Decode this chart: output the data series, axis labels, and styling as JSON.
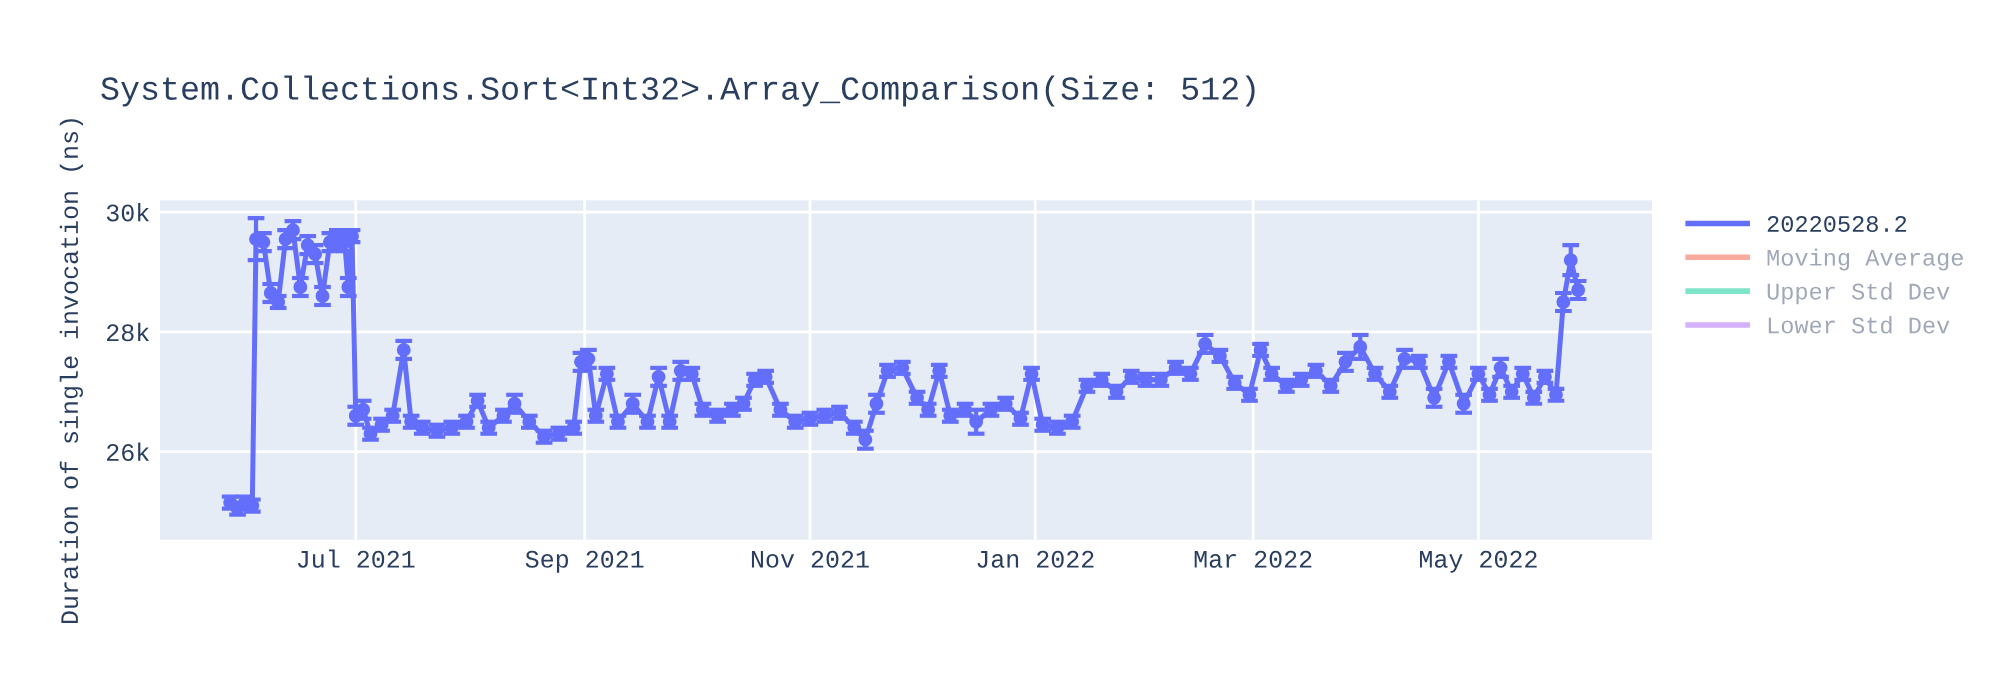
{
  "chart_data": {
    "type": "line",
    "title": "System.Collections.Sort<Int32>.Array_Comparison(Size: 512)",
    "ylabel": "Duration of single invocation (ns)",
    "x": [
      "2021-05-28",
      "2021-05-30",
      "2021-06-01",
      "2021-06-03",
      "2021-06-04",
      "2021-06-06",
      "2021-06-08",
      "2021-06-10",
      "2021-06-12",
      "2021-06-14",
      "2021-06-16",
      "2021-06-18",
      "2021-06-20",
      "2021-06-22",
      "2021-06-24",
      "2021-06-26",
      "2021-06-28",
      "2021-06-29",
      "2021-06-30",
      "2021-07-01",
      "2021-07-03",
      "2021-07-05",
      "2021-07-08",
      "2021-07-11",
      "2021-07-14",
      "2021-07-16",
      "2021-07-19",
      "2021-07-23",
      "2021-07-27",
      "2021-07-31",
      "2021-08-03",
      "2021-08-06",
      "2021-08-10",
      "2021-08-13",
      "2021-08-17",
      "2021-08-21",
      "2021-08-25",
      "2021-08-29",
      "2021-08-31",
      "2021-09-02",
      "2021-09-04",
      "2021-09-07",
      "2021-09-10",
      "2021-09-14",
      "2021-09-18",
      "2021-09-21",
      "2021-09-24",
      "2021-09-27",
      "2021-09-30",
      "2021-10-03",
      "2021-10-07",
      "2021-10-11",
      "2021-10-14",
      "2021-10-17",
      "2021-10-20",
      "2021-10-24",
      "2021-10-28",
      "2021-11-01",
      "2021-11-05",
      "2021-11-09",
      "2021-11-13",
      "2021-11-16",
      "2021-11-19",
      "2021-11-22",
      "2021-11-26",
      "2021-11-30",
      "2021-12-03",
      "2021-12-06",
      "2021-12-09",
      "2021-12-13",
      "2021-12-16",
      "2021-12-20",
      "2021-12-24",
      "2021-12-28",
      "2021-12-31",
      "2022-01-03",
      "2022-01-07",
      "2022-01-11",
      "2022-01-15",
      "2022-01-19",
      "2022-01-23",
      "2022-01-27",
      "2022-01-31",
      "2022-02-04",
      "2022-02-08",
      "2022-02-12",
      "2022-02-16",
      "2022-02-20",
      "2022-02-24",
      "2022-02-28",
      "2022-03-03",
      "2022-03-06",
      "2022-03-10",
      "2022-03-14",
      "2022-03-18",
      "2022-03-22",
      "2022-03-26",
      "2022-03-30",
      "2022-04-03",
      "2022-04-07",
      "2022-04-11",
      "2022-04-15",
      "2022-04-19",
      "2022-04-23",
      "2022-04-27",
      "2022-05-01",
      "2022-05-04",
      "2022-05-07",
      "2022-05-10",
      "2022-05-13",
      "2022-05-16",
      "2022-05-19",
      "2022-05-22",
      "2022-05-24",
      "2022-05-26",
      "2022-05-28"
    ],
    "series": [
      {
        "name": "20220528.2",
        "color": "#636efa",
        "values": [
          25150,
          25050,
          25150,
          25100,
          29550,
          29500,
          28650,
          28500,
          29550,
          29700,
          28750,
          29450,
          29300,
          28600,
          29500,
          29550,
          29500,
          28750,
          29600,
          26600,
          26700,
          26300,
          26450,
          26600,
          27700,
          26500,
          26400,
          26350,
          26400,
          26500,
          26850,
          26400,
          26600,
          26800,
          26500,
          26250,
          26300,
          26400,
          27500,
          27550,
          26600,
          27300,
          26500,
          26800,
          26500,
          27250,
          26500,
          27350,
          27300,
          26700,
          26600,
          26700,
          26800,
          27200,
          27250,
          26700,
          26500,
          26550,
          26600,
          26650,
          26400,
          26200,
          26800,
          27350,
          27400,
          26900,
          26700,
          27350,
          26600,
          26700,
          26500,
          26700,
          26800,
          26550,
          27300,
          26450,
          26400,
          26500,
          27100,
          27200,
          27000,
          27250,
          27200,
          27200,
          27400,
          27300,
          27800,
          27600,
          27150,
          26950,
          27700,
          27300,
          27100,
          27200,
          27350,
          27100,
          27500,
          27750,
          27300,
          27000,
          27550,
          27500,
          26900,
          27500,
          26800,
          27300,
          26950,
          27400,
          27000,
          27300,
          26900,
          27250,
          26950,
          28500,
          29200,
          28700
        ],
        "errors": [
          100,
          100,
          100,
          100,
          350,
          150,
          150,
          100,
          150,
          150,
          150,
          150,
          150,
          150,
          150,
          150,
          150,
          150,
          100,
          150,
          150,
          100,
          100,
          100,
          150,
          100,
          100,
          100,
          100,
          100,
          100,
          100,
          100,
          150,
          100,
          100,
          100,
          100,
          150,
          150,
          100,
          100,
          100,
          150,
          100,
          150,
          100,
          150,
          100,
          100,
          100,
          100,
          100,
          100,
          100,
          100,
          100,
          100,
          100,
          100,
          100,
          150,
          150,
          100,
          100,
          100,
          100,
          100,
          100,
          100,
          200,
          100,
          100,
          100,
          100,
          100,
          100,
          100,
          100,
          100,
          100,
          100,
          100,
          100,
          100,
          100,
          150,
          100,
          100,
          100,
          100,
          100,
          100,
          100,
          100,
          100,
          150,
          200,
          100,
          100,
          150,
          100,
          150,
          100,
          150,
          100,
          100,
          150,
          100,
          100,
          100,
          100,
          100,
          150,
          250,
          150
        ]
      },
      {
        "name": "Moving Average",
        "color": "#ef553b",
        "values": [
          null,
          null,
          null,
          null,
          null,
          null,
          null,
          null,
          null,
          null,
          null,
          null,
          null,
          null,
          null,
          null,
          null,
          null,
          null,
          null,
          null,
          null,
          null,
          null,
          null,
          null,
          null,
          null,
          null,
          null,
          null,
          null,
          null,
          null,
          null,
          null,
          null,
          null,
          null,
          null,
          null,
          null,
          null,
          null,
          null,
          null,
          null,
          null,
          null,
          null,
          null,
          null,
          null,
          null,
          null,
          null,
          null,
          null,
          null,
          null,
          null,
          null,
          null,
          null,
          null,
          null,
          null,
          null,
          null,
          null,
          null,
          null,
          null,
          null,
          null,
          null,
          null,
          null,
          null,
          null,
          null,
          null,
          null,
          null,
          null,
          null,
          null,
          null,
          null,
          null,
          null,
          null,
          null,
          null,
          null,
          null,
          null,
          null,
          null,
          null,
          null,
          null,
          null,
          null,
          null,
          null,
          null,
          null,
          null,
          null,
          null,
          null,
          null,
          null,
          null,
          null
        ]
      },
      {
        "name": "Upper Std Dev",
        "color": "#00cc96",
        "values": [
          null,
          null,
          null,
          null,
          null,
          null,
          null,
          null,
          null,
          null,
          null,
          null,
          null,
          null,
          null,
          null,
          null,
          null,
          null,
          null,
          null,
          null,
          null,
          null,
          null,
          null,
          null,
          null,
          null,
          null,
          null,
          null,
          null,
          null,
          null,
          null,
          null,
          null,
          null,
          null,
          null,
          null,
          null,
          null,
          null,
          null,
          null,
          null,
          null,
          null,
          null,
          null,
          null,
          null,
          null,
          null,
          null,
          null,
          null,
          null,
          null,
          null,
          null,
          null,
          null,
          null,
          null,
          null,
          null,
          null,
          null,
          null,
          null,
          null,
          null,
          null,
          null,
          null,
          null,
          null,
          null,
          null,
          null,
          null,
          null,
          null,
          null,
          null,
          null,
          null,
          null,
          null,
          null,
          null,
          null,
          null,
          null,
          null,
          null,
          null,
          null,
          null,
          null,
          null,
          null,
          null,
          null,
          null,
          null,
          null,
          null,
          null,
          null,
          null,
          null,
          null
        ]
      },
      {
        "name": "Lower Std Dev",
        "color": "#ab63fa",
        "values": [
          null,
          null,
          null,
          null,
          null,
          null,
          null,
          null,
          null,
          null,
          null,
          null,
          null,
          null,
          null,
          null,
          null,
          null,
          null,
          null,
          null,
          null,
          null,
          null,
          null,
          null,
          null,
          null,
          null,
          null,
          null,
          null,
          null,
          null,
          null,
          null,
          null,
          null,
          null,
          null,
          null,
          null,
          null,
          null,
          null,
          null,
          null,
          null,
          null,
          null,
          null,
          null,
          null,
          null,
          null,
          null,
          null,
          null,
          null,
          null,
          null,
          null,
          null,
          null,
          null,
          null,
          null,
          null,
          null,
          null,
          null,
          null,
          null,
          null,
          null,
          null,
          null,
          null,
          null,
          null,
          null,
          null,
          null,
          null,
          null,
          null,
          null,
          null,
          null,
          null,
          null,
          null,
          null,
          null,
          null,
          null,
          null,
          null,
          null,
          null,
          null,
          null,
          null,
          null,
          null,
          null,
          null,
          null,
          null,
          null,
          null,
          null,
          null,
          null,
          null,
          null
        ]
      }
    ],
    "xlim": [
      "2021-05-09",
      "2022-06-17"
    ],
    "xticks": [
      {
        "value": "2021-07-01",
        "label": "Jul 2021"
      },
      {
        "value": "2021-09-01",
        "label": "Sep 2021"
      },
      {
        "value": "2021-11-01",
        "label": "Nov 2021"
      },
      {
        "value": "2022-01-01",
        "label": "Jan 2022"
      },
      {
        "value": "2022-03-01",
        "label": "Mar 2022"
      },
      {
        "value": "2022-05-01",
        "label": "May 2022"
      }
    ],
    "ylim": [
      24530,
      30200
    ],
    "yticks": [
      {
        "value": 26000,
        "label": "26k"
      },
      {
        "value": 28000,
        "label": "28k"
      },
      {
        "value": 30000,
        "label": "30k"
      }
    ],
    "grid": true,
    "legend": "right",
    "marker": "circle",
    "line_style": "solid"
  }
}
